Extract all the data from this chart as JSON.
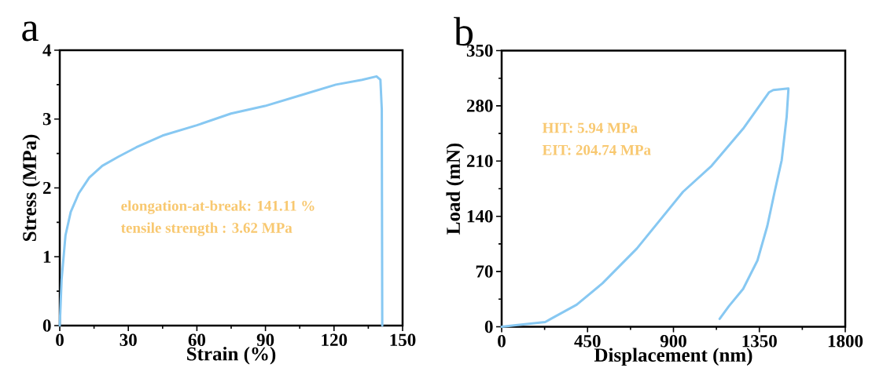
{
  "chart_data": [
    {
      "type": "line",
      "xlabel": "Strain (%)",
      "ylabel": "Stress (MPa)",
      "xlim": [
        0,
        150
      ],
      "ylim": [
        0,
        4
      ],
      "xticks": [
        0,
        30,
        60,
        90,
        120,
        150
      ],
      "yticks": [
        0,
        1,
        2,
        3,
        4
      ],
      "color": "#87c8f2",
      "x": [
        0,
        0.8,
        2.5,
        4.8,
        8.3,
        12.9,
        18.6,
        25.5,
        33.5,
        45,
        60,
        74.9,
        89.8,
        105.9,
        120.8,
        132.3,
        138.6,
        140.3,
        140.9,
        141.1
      ],
      "values": [
        0,
        0.67,
        1.31,
        1.65,
        1.92,
        2.15,
        2.32,
        2.45,
        2.59,
        2.76,
        2.91,
        3.08,
        3.19,
        3.35,
        3.5,
        3.57,
        3.62,
        3.57,
        3.14,
        0
      ],
      "annotations": [
        "a",
        "elongation-at-break: 141.11 %",
        "tensile strength : 3.62 MPa"
      ]
    },
    {
      "type": "line",
      "xlabel": "Displacement (nm)",
      "ylabel": "Load (mN)",
      "xlim": [
        0,
        1800
      ],
      "ylim": [
        0,
        350
      ],
      "xticks": [
        0,
        450,
        900,
        1350,
        1800
      ],
      "yticks": [
        0,
        70,
        140,
        210,
        280,
        350
      ],
      "color": "#87c8f2",
      "x": [
        0,
        93,
        228,
        258,
        393,
        528,
        708,
        950,
        1100,
        1265,
        1400,
        1423,
        1502,
        1502,
        1493,
        1467,
        1430,
        1392,
        1340,
        1265,
        1190,
        1142
      ],
      "values": [
        0,
        2.5,
        6,
        10,
        28,
        55,
        99,
        171,
        204,
        251,
        297,
        300,
        302,
        300,
        266,
        211,
        171,
        128,
        84,
        48,
        26,
        10
      ],
      "annotations": [
        "b",
        "HIT: 5.94 MPa",
        "EIT: 204.74 MPa"
      ]
    }
  ]
}
